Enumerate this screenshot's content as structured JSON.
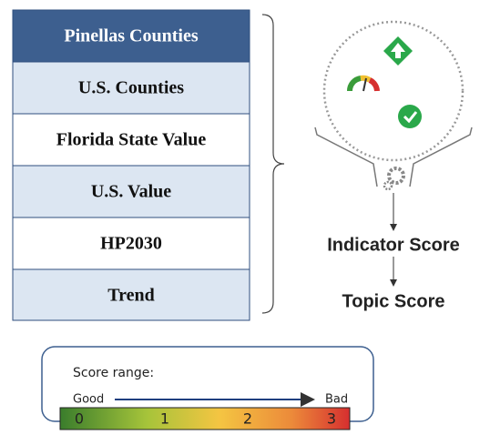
{
  "table": {
    "rows": [
      "Pinellas Counties",
      "U.S. Counties",
      "Florida State Value",
      "U.S. Value",
      "HP2030",
      "Trend"
    ]
  },
  "flow": {
    "steps": [
      "Indicator Score",
      "Topic Score"
    ]
  },
  "legend": {
    "title": "Score range:",
    "good": "Good",
    "bad": "Bad",
    "scale": [
      "0",
      "1",
      "2",
      "3"
    ]
  }
}
